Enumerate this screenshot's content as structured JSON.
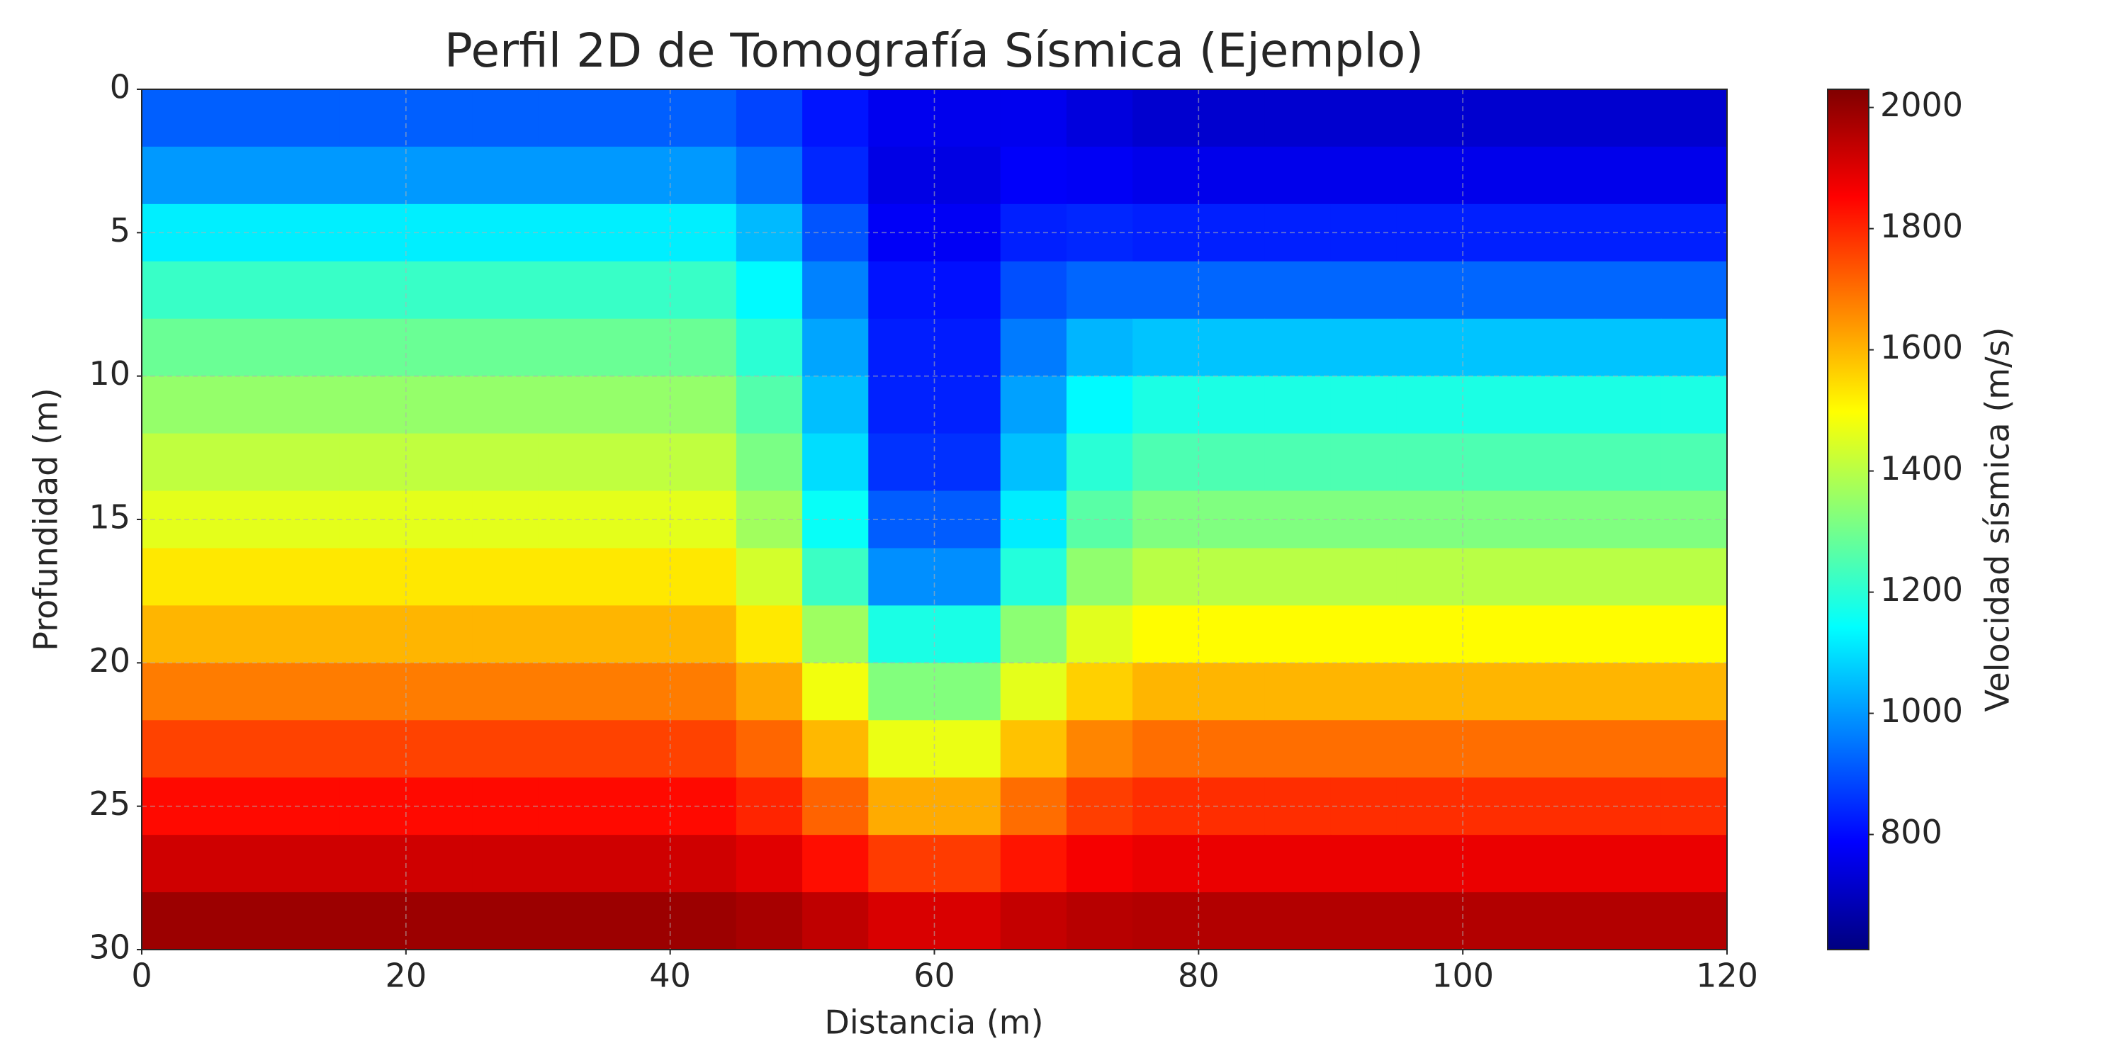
{
  "chart_data": {
    "type": "heatmap",
    "title": "Perfil 2D de Tomografía Sísmica (Ejemplo)",
    "xlabel": "Distancia (m)",
    "ylabel": "Profundidad (m)",
    "colorbar_label": "Velocidad sísmica (m/s)",
    "colormap": "jet",
    "grid": true,
    "y_inverted": true,
    "xlim": [
      0,
      120
    ],
    "ylim": [
      0,
      30
    ],
    "xticks": [
      0,
      20,
      40,
      60,
      80,
      100,
      120
    ],
    "yticks": [
      0,
      5,
      10,
      15,
      20,
      25,
      30
    ],
    "clim": [
      610,
      2030
    ],
    "cticks": [
      800,
      1000,
      1200,
      1400,
      1600,
      1800,
      2000
    ],
    "x": [
      2.5,
      7.5,
      12.5,
      17.5,
      22.5,
      27.5,
      32.5,
      37.5,
      42.5,
      47.5,
      52.5,
      57.5,
      62.5,
      67.5,
      72.5,
      77.5,
      82.5,
      87.5,
      92.5,
      97.5,
      102.5,
      107.5,
      112.5,
      117.5
    ],
    "y": [
      1,
      3,
      5,
      7,
      9,
      11,
      13,
      15,
      17,
      19,
      21,
      23,
      25,
      27,
      29
    ],
    "z": [
      [
        920,
        920,
        920,
        920,
        920,
        920,
        920,
        920,
        920,
        882,
        815,
        765,
        763,
        765,
        740,
        720,
        720,
        720,
        720,
        720,
        720,
        720,
        720,
        720
      ],
      [
        1000,
        1000,
        1000,
        1000,
        1000,
        1000,
        1000,
        1000,
        1000,
        945,
        840,
        751,
        748,
        780,
        774,
        760,
        760,
        760,
        760,
        760,
        760,
        760,
        760,
        760
      ],
      [
        1120,
        1120,
        1120,
        1120,
        1120,
        1120,
        1120,
        1120,
        1120,
        1047,
        904,
        777,
        773,
        831,
        841,
        830,
        830,
        830,
        830,
        830,
        830,
        830,
        830,
        830
      ],
      [
        1220,
        1220,
        1220,
        1220,
        1220,
        1220,
        1220,
        1220,
        1220,
        1137,
        969,
        812,
        808,
        897,
        930,
        930,
        930,
        930,
        930,
        930,
        930,
        930,
        930,
        930
      ],
      [
        1290,
        1290,
        1290,
        1290,
        1290,
        1290,
        1290,
        1290,
        1290,
        1203,
        1017,
        828,
        825,
        959,
        1039,
        1060,
        1060,
        1060,
        1060,
        1060,
        1060,
        1060,
        1060,
        1060
      ],
      [
        1350,
        1350,
        1350,
        1350,
        1350,
        1350,
        1350,
        1350,
        1350,
        1258,
        1054,
        834,
        832,
        1012,
        1137,
        1180,
        1180,
        1180,
        1180,
        1180,
        1180,
        1180,
        1180,
        1180
      ],
      [
        1410,
        1410,
        1410,
        1410,
        1410,
        1410,
        1410,
        1410,
        1410,
        1313,
        1095,
        857,
        855,
        1055,
        1199,
        1250,
        1250,
        1250,
        1250,
        1250,
        1250,
        1250,
        1250,
        1250
      ],
      [
        1460,
        1460,
        1460,
        1460,
        1460,
        1460,
        1460,
        1460,
        1460,
        1366,
        1152,
        917,
        915,
        1117,
        1267,
        1320,
        1320,
        1320,
        1320,
        1320,
        1320,
        1320,
        1320,
        1320
      ],
      [
        1530,
        1530,
        1530,
        1530,
        1530,
        1530,
        1530,
        1530,
        1530,
        1436,
        1224,
        987,
        985,
        1191,
        1344,
        1400,
        1400,
        1400,
        1400,
        1400,
        1400,
        1400,
        1400,
        1400
      ],
      [
        1600,
        1600,
        1600,
        1600,
        1600,
        1600,
        1600,
        1600,
        1600,
        1528,
        1362,
        1179,
        1177,
        1337,
        1456,
        1500,
        1500,
        1500,
        1500,
        1500,
        1500,
        1500,
        1500,
        1500
      ],
      [
        1680,
        1680,
        1680,
        1680,
        1680,
        1680,
        1680,
        1680,
        1680,
        1619,
        1480,
        1324,
        1323,
        1460,
        1563,
        1600,
        1600,
        1600,
        1600,
        1600,
        1600,
        1600,
        1600,
        1600
      ],
      [
        1760,
        1760,
        1760,
        1760,
        1760,
        1760,
        1760,
        1760,
        1760,
        1711,
        1597,
        1470,
        1469,
        1582,
        1668,
        1700,
        1700,
        1700,
        1700,
        1700,
        1700,
        1700,
        1700,
        1700
      ],
      [
        1840,
        1840,
        1840,
        1840,
        1840,
        1840,
        1840,
        1840,
        1840,
        1802,
        1714,
        1615,
        1615,
        1701,
        1766,
        1790,
        1790,
        1790,
        1790,
        1790,
        1790,
        1790,
        1790,
        1790
      ],
      [
        1920,
        1920,
        1920,
        1920,
        1920,
        1920,
        1920,
        1920,
        1920,
        1894,
        1835,
        1770,
        1770,
        1825,
        1865,
        1880,
        1880,
        1880,
        1880,
        1880,
        1880,
        1880,
        1880,
        1880
      ],
      [
        1990,
        1990,
        1990,
        1990,
        1990,
        1990,
        1990,
        1990,
        1990,
        1975,
        1941,
        1905,
        1905,
        1934,
        1953,
        1960,
        1960,
        1960,
        1960,
        1960,
        1960,
        1960,
        1960,
        1960
      ]
    ]
  }
}
